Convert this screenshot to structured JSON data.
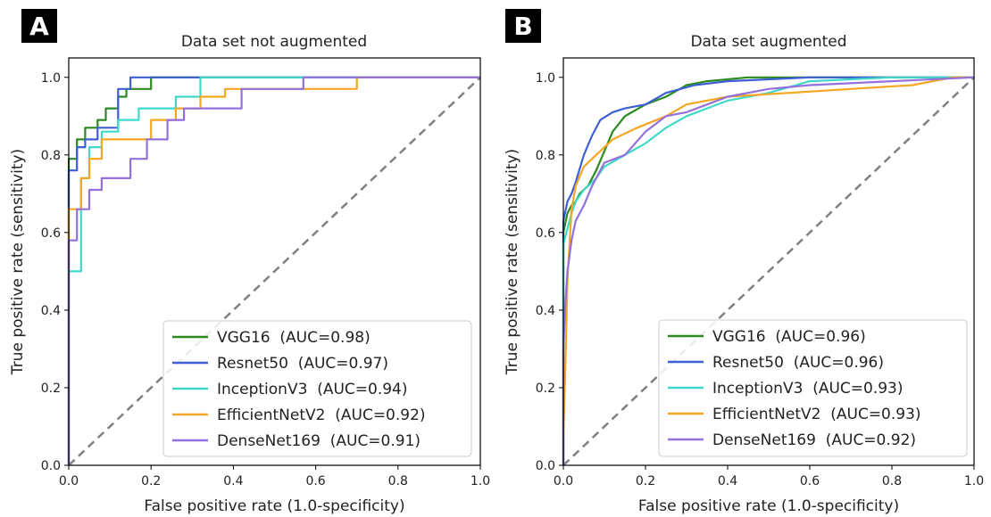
{
  "chart_data": [
    {
      "panel_label": "A",
      "type": "line",
      "title": "Data set not augmented",
      "xlabel": "False positive rate (1.0-specificity)",
      "ylabel": "True positive rate (sensitivity)",
      "xlim": [
        0,
        1
      ],
      "ylim": [
        0,
        1.05
      ],
      "xticks": [
        "0.0",
        "0.2",
        "0.4",
        "0.6",
        "0.8",
        "1.0"
      ],
      "yticks": [
        "0.0",
        "0.2",
        "0.4",
        "0.6",
        "0.8",
        "1.0"
      ],
      "legend_position": "lower-right",
      "series": [
        {
          "name": "VGG16",
          "auc_label": "(AUC=0.98)",
          "color": "#2a8a1f",
          "points": [
            [
              0,
              0
            ],
            [
              0,
              0.79
            ],
            [
              0.02,
              0.79
            ],
            [
              0.02,
              0.84
            ],
            [
              0.04,
              0.84
            ],
            [
              0.04,
              0.87
            ],
            [
              0.07,
              0.87
            ],
            [
              0.07,
              0.89
            ],
            [
              0.09,
              0.89
            ],
            [
              0.09,
              0.92
            ],
            [
              0.12,
              0.92
            ],
            [
              0.12,
              0.95
            ],
            [
              0.14,
              0.95
            ],
            [
              0.14,
              0.97
            ],
            [
              0.2,
              0.97
            ],
            [
              0.2,
              1.0
            ],
            [
              1,
              1
            ]
          ]
        },
        {
          "name": "Resnet50",
          "auc_label": "(AUC=0.97)",
          "color": "#3f5fd6",
          "points": [
            [
              0,
              0
            ],
            [
              0,
              0.76
            ],
            [
              0.02,
              0.76
            ],
            [
              0.02,
              0.82
            ],
            [
              0.04,
              0.82
            ],
            [
              0.04,
              0.84
            ],
            [
              0.07,
              0.84
            ],
            [
              0.07,
              0.87
            ],
            [
              0.12,
              0.87
            ],
            [
              0.12,
              0.97
            ],
            [
              0.15,
              0.97
            ],
            [
              0.15,
              1.0
            ],
            [
              1,
              1
            ]
          ]
        },
        {
          "name": "InceptionV3",
          "auc_label": "(AUC=0.94)",
          "color": "#40d8c8",
          "points": [
            [
              0,
              0
            ],
            [
              0,
              0.5
            ],
            [
              0.03,
              0.5
            ],
            [
              0.03,
              0.74
            ],
            [
              0.05,
              0.74
            ],
            [
              0.05,
              0.82
            ],
            [
              0.08,
              0.82
            ],
            [
              0.08,
              0.86
            ],
            [
              0.12,
              0.86
            ],
            [
              0.12,
              0.89
            ],
            [
              0.17,
              0.89
            ],
            [
              0.17,
              0.92
            ],
            [
              0.26,
              0.92
            ],
            [
              0.26,
              0.95
            ],
            [
              0.32,
              0.95
            ],
            [
              0.32,
              1.0
            ],
            [
              1,
              1
            ]
          ]
        },
        {
          "name": "EfficientNetV2",
          "auc_label": "(AUC=0.92)",
          "color": "#f5a623",
          "points": [
            [
              0,
              0
            ],
            [
              0,
              0.66
            ],
            [
              0.03,
              0.66
            ],
            [
              0.03,
              0.74
            ],
            [
              0.05,
              0.74
            ],
            [
              0.05,
              0.79
            ],
            [
              0.08,
              0.79
            ],
            [
              0.08,
              0.84
            ],
            [
              0.2,
              0.84
            ],
            [
              0.2,
              0.89
            ],
            [
              0.26,
              0.89
            ],
            [
              0.26,
              0.92
            ],
            [
              0.32,
              0.92
            ],
            [
              0.32,
              0.95
            ],
            [
              0.38,
              0.95
            ],
            [
              0.38,
              0.97
            ],
            [
              0.7,
              0.97
            ],
            [
              0.7,
              1.0
            ],
            [
              1,
              1
            ]
          ]
        },
        {
          "name": "DenseNet169",
          "auc_label": "(AUC=0.91)",
          "color": "#9370db",
          "points": [
            [
              0,
              0
            ],
            [
              0,
              0.58
            ],
            [
              0.02,
              0.58
            ],
            [
              0.02,
              0.66
            ],
            [
              0.05,
              0.66
            ],
            [
              0.05,
              0.71
            ],
            [
              0.08,
              0.71
            ],
            [
              0.08,
              0.74
            ],
            [
              0.15,
              0.74
            ],
            [
              0.15,
              0.79
            ],
            [
              0.19,
              0.79
            ],
            [
              0.19,
              0.84
            ],
            [
              0.24,
              0.84
            ],
            [
              0.24,
              0.89
            ],
            [
              0.28,
              0.89
            ],
            [
              0.28,
              0.92
            ],
            [
              0.42,
              0.92
            ],
            [
              0.42,
              0.97
            ],
            [
              0.57,
              0.97
            ],
            [
              0.57,
              1.0
            ],
            [
              1,
              1
            ]
          ]
        }
      ]
    },
    {
      "panel_label": "B",
      "type": "line",
      "title": "Data set augmented",
      "xlabel": "False positive rate (1.0-specificity)",
      "ylabel": "True positive rate (sensitivity)",
      "xlim": [
        0,
        1
      ],
      "ylim": [
        0,
        1.05
      ],
      "xticks": [
        "0.0",
        "0.2",
        "0.4",
        "0.6",
        "0.8",
        "1.0"
      ],
      "yticks": [
        "0.0",
        "0.2",
        "0.4",
        "0.6",
        "0.8",
        "1.0"
      ],
      "legend_position": "lower-right",
      "series": [
        {
          "name": "VGG16",
          "auc_label": "(AUC=0.96)",
          "color": "#2a8a1f",
          "points": [
            [
              0,
              0
            ],
            [
              0,
              0.6
            ],
            [
              0.01,
              0.65
            ],
            [
              0.02,
              0.67
            ],
            [
              0.03,
              0.68
            ],
            [
              0.04,
              0.7
            ],
            [
              0.06,
              0.72
            ],
            [
              0.08,
              0.76
            ],
            [
              0.1,
              0.81
            ],
            [
              0.12,
              0.86
            ],
            [
              0.15,
              0.9
            ],
            [
              0.2,
              0.93
            ],
            [
              0.25,
              0.95
            ],
            [
              0.3,
              0.98
            ],
            [
              0.35,
              0.99
            ],
            [
              0.45,
              1.0
            ],
            [
              1,
              1
            ]
          ]
        },
        {
          "name": "Resnet50",
          "auc_label": "(AUC=0.96)",
          "color": "#3f5fd6",
          "points": [
            [
              0,
              0
            ],
            [
              0,
              0.63
            ],
            [
              0.01,
              0.68
            ],
            [
              0.02,
              0.7
            ],
            [
              0.03,
              0.73
            ],
            [
              0.05,
              0.8
            ],
            [
              0.07,
              0.85
            ],
            [
              0.09,
              0.89
            ],
            [
              0.12,
              0.91
            ],
            [
              0.15,
              0.92
            ],
            [
              0.2,
              0.93
            ],
            [
              0.25,
              0.96
            ],
            [
              0.32,
              0.98
            ],
            [
              0.4,
              0.99
            ],
            [
              0.6,
              1.0
            ],
            [
              1,
              1
            ]
          ]
        },
        {
          "name": "InceptionV3",
          "auc_label": "(AUC=0.93)",
          "color": "#40d8c8",
          "points": [
            [
              0,
              0
            ],
            [
              0,
              0.57
            ],
            [
              0.01,
              0.61
            ],
            [
              0.02,
              0.65
            ],
            [
              0.03,
              0.68
            ],
            [
              0.05,
              0.71
            ],
            [
              0.08,
              0.74
            ],
            [
              0.1,
              0.77
            ],
            [
              0.15,
              0.8
            ],
            [
              0.2,
              0.83
            ],
            [
              0.25,
              0.87
            ],
            [
              0.3,
              0.9
            ],
            [
              0.4,
              0.94
            ],
            [
              0.5,
              0.96
            ],
            [
              0.6,
              0.99
            ],
            [
              0.8,
              1.0
            ],
            [
              1,
              1
            ]
          ]
        },
        {
          "name": "EfficientNetV2",
          "auc_label": "(AUC=0.93)",
          "color": "#f5a623",
          "points": [
            [
              0,
              0
            ],
            [
              0,
              0.07
            ],
            [
              0.005,
              0.26
            ],
            [
              0.01,
              0.48
            ],
            [
              0.02,
              0.66
            ],
            [
              0.03,
              0.72
            ],
            [
              0.05,
              0.77
            ],
            [
              0.08,
              0.8
            ],
            [
              0.12,
              0.84
            ],
            [
              0.18,
              0.87
            ],
            [
              0.25,
              0.9
            ],
            [
              0.3,
              0.93
            ],
            [
              0.4,
              0.95
            ],
            [
              0.55,
              0.96
            ],
            [
              0.7,
              0.97
            ],
            [
              0.85,
              0.98
            ],
            [
              0.9,
              0.99
            ],
            [
              0.95,
              1.0
            ],
            [
              1,
              1
            ]
          ]
        },
        {
          "name": "DenseNet169",
          "auc_label": "(AUC=0.92)",
          "color": "#9370db",
          "points": [
            [
              0,
              0
            ],
            [
              0,
              0.3
            ],
            [
              0.005,
              0.42
            ],
            [
              0.01,
              0.5
            ],
            [
              0.02,
              0.58
            ],
            [
              0.03,
              0.63
            ],
            [
              0.05,
              0.67
            ],
            [
              0.07,
              0.72
            ],
            [
              0.1,
              0.78
            ],
            [
              0.15,
              0.8
            ],
            [
              0.2,
              0.86
            ],
            [
              0.25,
              0.9
            ],
            [
              0.3,
              0.91
            ],
            [
              0.35,
              0.93
            ],
            [
              0.4,
              0.95
            ],
            [
              0.5,
              0.97
            ],
            [
              0.6,
              0.98
            ],
            [
              0.8,
              0.99
            ],
            [
              1,
              1
            ]
          ]
        }
      ]
    }
  ]
}
